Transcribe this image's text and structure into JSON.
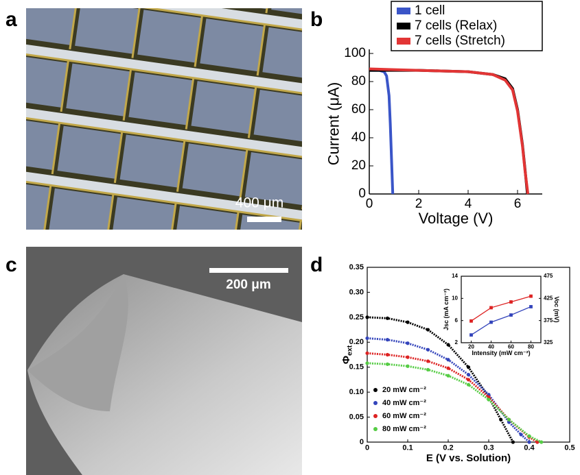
{
  "figure": {
    "panel_labels": [
      "a",
      "b",
      "c",
      "d"
    ],
    "scale_bars": [
      "400 μm",
      "200 μm"
    ]
  },
  "chart_data": [
    {
      "type": "line",
      "xlabel": "Voltage (V)",
      "ylabel": "Current (μA)",
      "xlim": [
        0,
        7
      ],
      "xticks": [
        0,
        2,
        4,
        6
      ],
      "ylim": [
        0,
        100
      ],
      "yticks": [
        0,
        20,
        40,
        60,
        80,
        100
      ],
      "legend": "top",
      "series": [
        {
          "name": "1 cell",
          "color": "#3a55c8",
          "x": [
            0,
            0.2,
            0.4,
            0.6,
            0.7,
            0.8,
            0.85,
            0.9,
            0.95
          ],
          "values": [
            88,
            88,
            88,
            87,
            84,
            70,
            50,
            25,
            0
          ]
        },
        {
          "name": "7 cells (Relax)",
          "color": "#000000",
          "x": [
            0,
            1,
            2,
            3,
            4,
            5,
            5.5,
            5.8,
            6.0,
            6.2,
            6.3,
            6.4
          ],
          "values": [
            88,
            88,
            88,
            87.5,
            87,
            85,
            82,
            75,
            60,
            35,
            18,
            0
          ]
        },
        {
          "name": "7 cells (Stretch)",
          "color": "#e23535",
          "x": [
            0,
            1,
            2,
            3,
            4,
            5,
            5.5,
            5.8,
            6.0,
            6.2,
            6.3,
            6.42
          ],
          "values": [
            89,
            88.5,
            88,
            87.5,
            87,
            85,
            81,
            74,
            59,
            34,
            17,
            0
          ]
        }
      ]
    },
    {
      "type": "scatter",
      "xlabel": "E (V vs. Solution)",
      "ylabel": "Φ",
      "ylabel_subscript": "ext",
      "xlim": [
        0,
        0.5
      ],
      "xticks": [
        0,
        0.1,
        0.2,
        0.3,
        0.4,
        0.5
      ],
      "ylim": [
        0,
        0.35
      ],
      "yticks": [
        0,
        0.05,
        {
          "value": 0.1,
          "label": "0.10"
        },
        0.15,
        {
          "value": 0.2,
          "label": "0.20"
        },
        0.25,
        {
          "value": 0.3,
          "label": "0.30"
        },
        0.35
      ],
      "legend": "lower left",
      "series": [
        {
          "name": "20 mW cm⁻²",
          "color": "#000000",
          "x": [
            0,
            0.05,
            0.1,
            0.15,
            0.2,
            0.25,
            0.3,
            0.33,
            0.36
          ],
          "values": [
            0.25,
            0.248,
            0.24,
            0.225,
            0.195,
            0.15,
            0.09,
            0.045,
            0
          ]
        },
        {
          "name": "40 mW cm⁻²",
          "color": "#3344bb",
          "x": [
            0,
            0.05,
            0.1,
            0.15,
            0.2,
            0.25,
            0.3,
            0.35,
            0.38,
            0.4
          ],
          "values": [
            0.208,
            0.205,
            0.198,
            0.185,
            0.165,
            0.135,
            0.095,
            0.04,
            0.015,
            0
          ]
        },
        {
          "name": "60 mW cm⁻²",
          "color": "#dd2222",
          "x": [
            0,
            0.05,
            0.1,
            0.15,
            0.2,
            0.25,
            0.3,
            0.35,
            0.4,
            0.42
          ],
          "values": [
            0.178,
            0.175,
            0.17,
            0.162,
            0.148,
            0.125,
            0.09,
            0.045,
            0.01,
            0
          ]
        },
        {
          "name": "80 mW cm⁻²",
          "color": "#55cc44",
          "x": [
            0,
            0.05,
            0.1,
            0.15,
            0.2,
            0.25,
            0.3,
            0.35,
            0.4,
            0.43
          ],
          "values": [
            0.158,
            0.156,
            0.152,
            0.145,
            0.133,
            0.115,
            0.085,
            0.045,
            0.012,
            0
          ]
        }
      ]
    },
    {
      "type": "line",
      "xlabel": "Intensity (mW cm⁻²)",
      "ylabel": "Jsc (mA cm⁻²)",
      "y2label": "Voc (mV)",
      "xlim": [
        10,
        90
      ],
      "xticks": [
        20,
        40,
        60,
        80
      ],
      "ylim": [
        2,
        14
      ],
      "yticks": [
        2,
        6,
        10,
        14
      ],
      "y2lim": [
        325,
        475
      ],
      "y2ticks": [
        325,
        375,
        425,
        475
      ],
      "series": [
        {
          "color": "#3344bb",
          "x": [
            20,
            40,
            60,
            80
          ],
          "values": [
            3.4,
            5.7,
            7.0,
            8.5
          ]
        },
        {
          "color": "#dd2222",
          "axis": "y2",
          "x": [
            20,
            40,
            60,
            80
          ],
          "values": [
            374,
            404,
            417,
            430
          ]
        }
      ]
    }
  ]
}
